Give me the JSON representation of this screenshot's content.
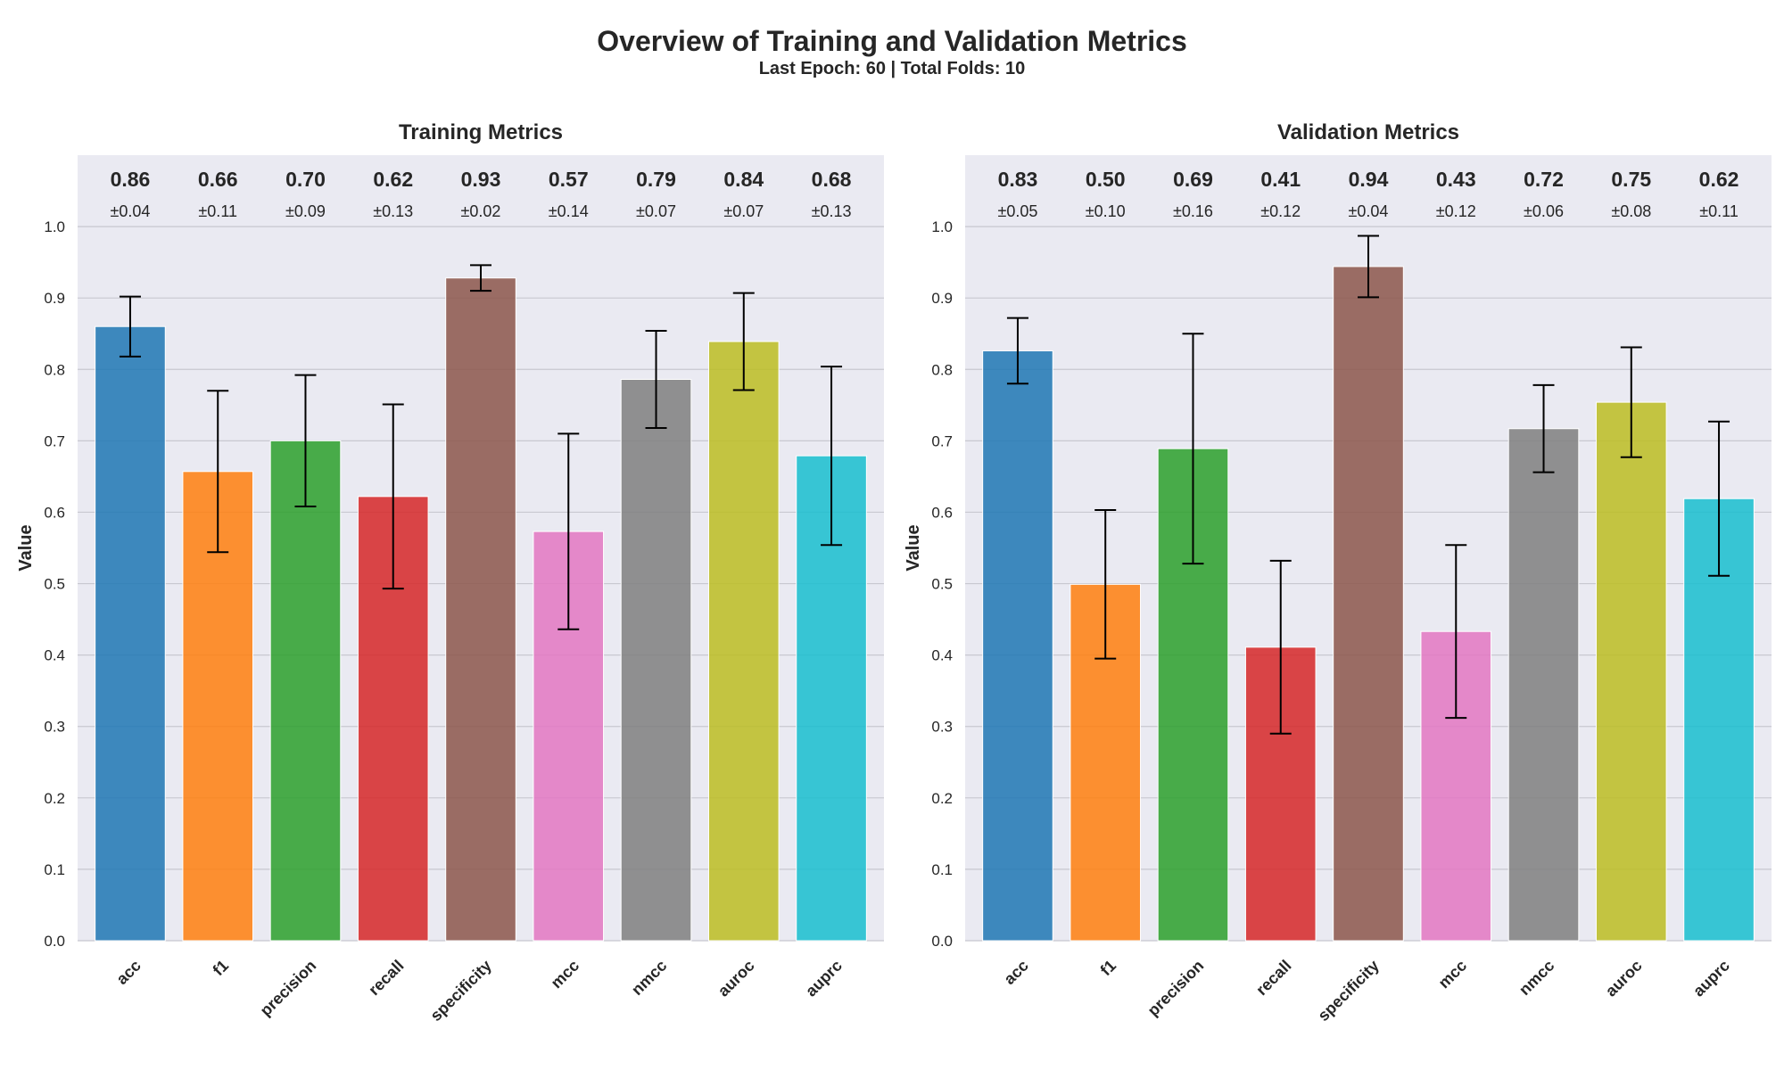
{
  "figure": {
    "title": "Overview of Training and Validation Metrics",
    "subtitle": "Last Epoch: 60 | Total Folds: 10",
    "colors": {
      "panel_bg": "#EAEAF2",
      "grid": "#C8C8D0",
      "error_bar": "#000000",
      "bars": [
        "#1f77b4",
        "#ff7f0e",
        "#2ca02c",
        "#d62728",
        "#8c564b",
        "#e377c2",
        "#7f7f7f",
        "#bcbd22",
        "#17becf"
      ]
    }
  },
  "chart_data": [
    {
      "type": "bar",
      "title": "Training Metrics",
      "xlabel": "",
      "ylabel": "Value",
      "ylim": [
        0,
        1.1
      ],
      "yticks": [
        0.0,
        0.1,
        0.2,
        0.3,
        0.4,
        0.5,
        0.6,
        0.7,
        0.8,
        0.9,
        1.0
      ],
      "grid": true,
      "categories": [
        "acc",
        "f1",
        "precision",
        "recall",
        "specificity",
        "mcc",
        "nmcc",
        "auroc",
        "auprc"
      ],
      "values": [
        0.86,
        0.657,
        0.7,
        0.622,
        0.928,
        0.573,
        0.786,
        0.839,
        0.679
      ],
      "errors": [
        0.042,
        0.113,
        0.092,
        0.129,
        0.018,
        0.137,
        0.068,
        0.068,
        0.125
      ],
      "value_labels": [
        "0.86",
        "0.66",
        "0.70",
        "0.62",
        "0.93",
        "0.57",
        "0.79",
        "0.84",
        "0.68"
      ],
      "error_labels": [
        "±0.04",
        "±0.11",
        "±0.09",
        "±0.13",
        "±0.02",
        "±0.14",
        "±0.07",
        "±0.07",
        "±0.13"
      ]
    },
    {
      "type": "bar",
      "title": "Validation Metrics",
      "xlabel": "",
      "ylabel": "Value",
      "ylim": [
        0,
        1.1
      ],
      "yticks": [
        0.0,
        0.1,
        0.2,
        0.3,
        0.4,
        0.5,
        0.6,
        0.7,
        0.8,
        0.9,
        1.0
      ],
      "grid": true,
      "categories": [
        "acc",
        "f1",
        "precision",
        "recall",
        "specificity",
        "mcc",
        "nmcc",
        "auroc",
        "auprc"
      ],
      "values": [
        0.826,
        0.499,
        0.689,
        0.411,
        0.944,
        0.433,
        0.717,
        0.754,
        0.619
      ],
      "errors": [
        0.046,
        0.104,
        0.161,
        0.121,
        0.043,
        0.121,
        0.061,
        0.077,
        0.108
      ],
      "value_labels": [
        "0.83",
        "0.50",
        "0.69",
        "0.41",
        "0.94",
        "0.43",
        "0.72",
        "0.75",
        "0.62"
      ],
      "error_labels": [
        "±0.05",
        "±0.10",
        "±0.16",
        "±0.12",
        "±0.04",
        "±0.12",
        "±0.06",
        "±0.08",
        "±0.11"
      ]
    }
  ]
}
